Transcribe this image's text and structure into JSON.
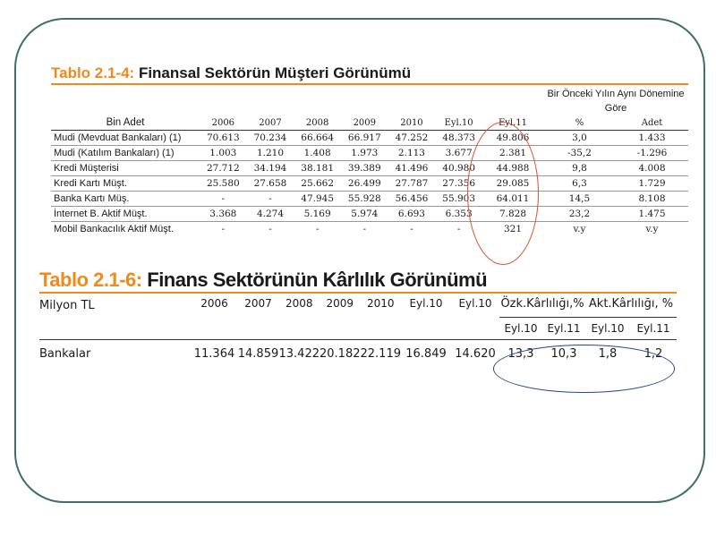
{
  "table1": {
    "title_prefix": "Tablo 2.1-4:",
    "title_main": "Finansal Sektörün Müşteri Görünümü",
    "super_header": "Bir Önceki Yılın Aynı Dönemine Göre",
    "row_label_header": "Bin Adet",
    "columns": [
      "2006",
      "2007",
      "2008",
      "2009",
      "2010",
      "Eyl.10",
      "Eyl.11",
      "%",
      "Adet"
    ],
    "rows": [
      {
        "label": "Mudi (Mevduat Bankaları) (1)",
        "values": [
          "70.613",
          "70.234",
          "66.664",
          "66.917",
          "47.252",
          "48.373",
          "49.806",
          "3,0",
          "1.433"
        ]
      },
      {
        "label": "Mudi (Katılım Bankaları) (1)",
        "values": [
          "1.003",
          "1.210",
          "1.408",
          "1.973",
          "2.113",
          "3.677",
          "2.381",
          "-35,2",
          "-1.296"
        ]
      },
      {
        "label": "Kredi Müşterisi",
        "values": [
          "27.712",
          "34.194",
          "38.181",
          "39.389",
          "41.496",
          "40.980",
          "44.988",
          "9,8",
          "4.008"
        ]
      },
      {
        "label": "Kredi Kartı Müşt.",
        "values": [
          "25.580",
          "27.658",
          "25.662",
          "26.499",
          "27.787",
          "27.356",
          "29.085",
          "6,3",
          "1.729"
        ]
      },
      {
        "label": "Banka Kartı Müş.",
        "values": [
          "-",
          "-",
          "47.945",
          "55.928",
          "56.456",
          "55.903",
          "64.011",
          "14,5",
          "8.108"
        ]
      },
      {
        "label": "İnternet B. Aktif Müşt.",
        "values": [
          "3.368",
          "4.274",
          "5.169",
          "5.974",
          "6.693",
          "6.353",
          "7.828",
          "23,2",
          "1.475"
        ]
      },
      {
        "label": "Mobil Bankacılık Aktif Müşt.",
        "values": [
          "-",
          "-",
          "-",
          "-",
          "-",
          "-",
          "321",
          "v.y",
          "v.y"
        ]
      }
    ]
  },
  "table2": {
    "title_prefix": "Tablo 2.1-6:",
    "title_main": "Finans Sektörünün Kârlılık Görünümü",
    "unit_label": "Milyon TL",
    "columns": [
      "2006",
      "2007",
      "2008",
      "2009",
      "2010",
      "Eyl.10",
      "Eyl.10"
    ],
    "group1": "Özk.Kârlılığı,%",
    "group2": "Akt.Kârlılığı, %",
    "sub_columns": [
      "Eyl.10",
      "Eyl.11",
      "Eyl.10",
      "Eyl.11"
    ],
    "row": {
      "label": "Bankalar",
      "values": [
        "11.364",
        "14.859",
        "13.422",
        "20.182",
        "22.119",
        "16.849",
        "14.620"
      ],
      "ratios": [
        "13,3",
        "10,3",
        "1,8",
        "1,2"
      ]
    }
  },
  "colors": {
    "title_accent": "#f08a1c",
    "red_ellipse": "#d9512c",
    "blue_ellipse": "#2a3f9a",
    "frame": "#3f6f68"
  }
}
